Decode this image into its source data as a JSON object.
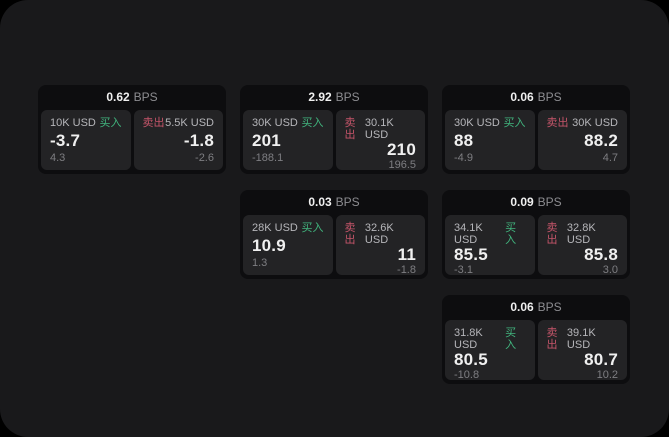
{
  "labels": {
    "bps": "BPS",
    "buy": "买入",
    "sell": "卖出"
  },
  "colors": {
    "outer-bg": "#000000",
    "panel-bg": "#19191b",
    "card-bg": "#0d0d0f",
    "subcard-bg": "#232325",
    "buy-green": "#41b57e",
    "sell-red": "#c5556a",
    "text-primary": "#f0f0f0",
    "text-secondary": "#b6b6ba",
    "text-muted": "#8d8d91",
    "text-dim": "#7e7e82"
  },
  "cards": [
    {
      "bps": "0.62",
      "buy": {
        "amount": "10K USD",
        "price": "-3.7",
        "delta": "4.3"
      },
      "sell": {
        "amount": "5.5K USD",
        "price": "-1.8",
        "delta": "-2.6"
      }
    },
    {
      "bps": "2.92",
      "buy": {
        "amount": "30K USD",
        "price": "201",
        "delta": "-188.1"
      },
      "sell": {
        "amount": "30.1K USD",
        "price": "210",
        "delta": "196.5"
      }
    },
    {
      "bps": "0.06",
      "buy": {
        "amount": "30K USD",
        "price": "88",
        "delta": "-4.9"
      },
      "sell": {
        "amount": "30K USD",
        "price": "88.2",
        "delta": "4.7"
      }
    },
    {
      "bps": "0.03",
      "buy": {
        "amount": "28K USD",
        "price": "10.9",
        "delta": "1.3"
      },
      "sell": {
        "amount": "32.6K USD",
        "price": "11",
        "delta": "-1.8"
      }
    },
    {
      "bps": "0.09",
      "buy": {
        "amount": "34.1K USD",
        "price": "85.5",
        "delta": "-3.1"
      },
      "sell": {
        "amount": "32.8K USD",
        "price": "85.8",
        "delta": "3.0"
      }
    },
    {
      "bps": "0.06",
      "buy": {
        "amount": "31.8K USD",
        "price": "80.5",
        "delta": "-10.8"
      },
      "sell": {
        "amount": "39.1K USD",
        "price": "80.7",
        "delta": "10.2"
      }
    }
  ]
}
